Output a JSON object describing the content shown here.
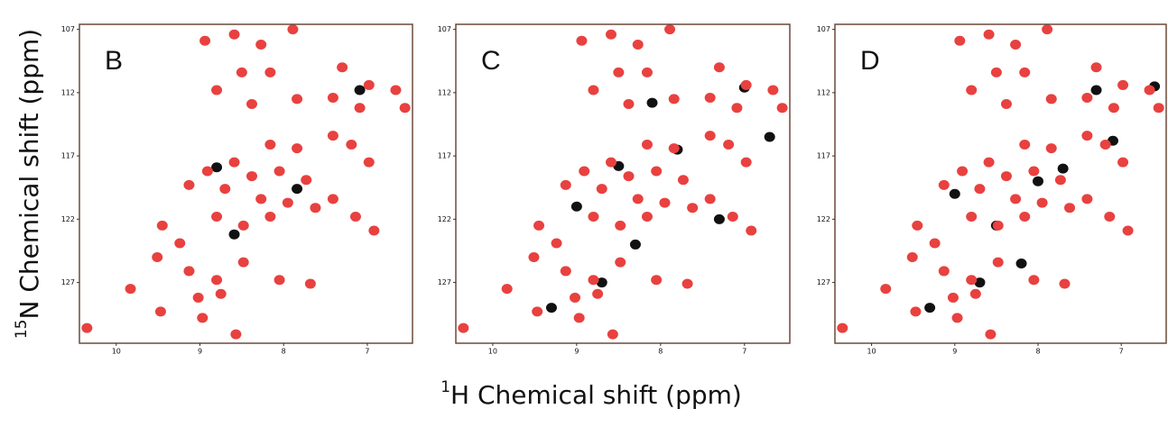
{
  "chart_data": [
    {
      "type": "scatter",
      "panel_label": "B",
      "xlim": [
        10.44,
        6.46
      ],
      "ylim": [
        131.8,
        106.6
      ],
      "xticks": [
        10,
        9,
        8,
        7
      ],
      "yticks": [
        107,
        112,
        117,
        122,
        127
      ],
      "series": [
        {
          "color": "#111111",
          "x": [
            8.8,
            7.84,
            7.09,
            8.59
          ],
          "y": [
            117.9,
            119.6,
            111.8,
            123.2
          ]
        },
        {
          "color": "#e8413f",
          "x": [
            8.94,
            8.59,
            8.27,
            7.89,
            8.5,
            8.16,
            7.3,
            6.98,
            6.66,
            7.84,
            7.41,
            7.09,
            6.55,
            8.8,
            8.38,
            8.16,
            7.84,
            7.41,
            7.19,
            8.59,
            8.38,
            8.05,
            7.73,
            8.91,
            9.13,
            8.7,
            8.27,
            7.95,
            7.62,
            8.16,
            8.48,
            8.8,
            6.98,
            7.14,
            6.92,
            7.41,
            9.45,
            9.51,
            9.24,
            9.13,
            8.8,
            8.48,
            9.02,
            8.75,
            9.83,
            9.47,
            8.97,
            8.57,
            10.35,
            8.05,
            7.68
          ],
          "y": [
            107.9,
            107.4,
            108.2,
            107,
            110.4,
            110.4,
            110,
            111.4,
            111.8,
            112.5,
            112.4,
            113.2,
            113.2,
            111.8,
            112.9,
            116.1,
            116.4,
            115.4,
            116.1,
            117.5,
            118.6,
            118.2,
            118.9,
            118.2,
            119.3,
            119.6,
            120.4,
            120.7,
            121.1,
            121.8,
            122.5,
            121.8,
            117.5,
            121.8,
            122.9,
            120.4,
            122.5,
            125,
            123.9,
            126.1,
            126.8,
            125.4,
            128.2,
            127.9,
            127.5,
            129.3,
            129.8,
            131.1,
            130.6,
            126.8,
            127.1
          ]
        }
      ]
    },
    {
      "type": "scatter",
      "panel_label": "C",
      "xlim": [
        10.44,
        6.46
      ],
      "ylim": [
        131.8,
        106.6
      ],
      "xticks": [
        10,
        9,
        8,
        7
      ],
      "yticks": [
        107,
        112,
        117,
        122,
        127
      ],
      "series": [
        {
          "color": "#111111",
          "x": [
            9.3,
            8.7,
            8.3,
            7.8,
            7.0,
            8.1,
            8.5,
            9.0,
            7.3,
            6.7
          ],
          "y": [
            129.0,
            127.0,
            124.0,
            116.5,
            111.6,
            112.8,
            117.8,
            121.0,
            122.0,
            115.5
          ]
        },
        {
          "color": "#e8413f",
          "x": [
            8.94,
            8.59,
            8.27,
            7.89,
            8.5,
            8.16,
            7.3,
            6.98,
            6.66,
            7.84,
            7.41,
            7.09,
            6.55,
            8.8,
            8.38,
            8.16,
            7.84,
            7.41,
            7.19,
            8.59,
            8.38,
            8.05,
            7.73,
            8.91,
            9.13,
            8.7,
            8.27,
            7.95,
            7.62,
            8.16,
            8.48,
            8.8,
            6.98,
            7.14,
            6.92,
            7.41,
            9.45,
            9.51,
            9.24,
            9.13,
            8.8,
            8.48,
            9.02,
            8.75,
            9.83,
            9.47,
            8.97,
            8.57,
            10.35,
            8.05,
            7.68
          ],
          "y": [
            107.9,
            107.4,
            108.2,
            107,
            110.4,
            110.4,
            110,
            111.4,
            111.8,
            112.5,
            112.4,
            113.2,
            113.2,
            111.8,
            112.9,
            116.1,
            116.4,
            115.4,
            116.1,
            117.5,
            118.6,
            118.2,
            118.9,
            118.2,
            119.3,
            119.6,
            120.4,
            120.7,
            121.1,
            121.8,
            122.5,
            121.8,
            117.5,
            121.8,
            122.9,
            120.4,
            122.5,
            125,
            123.9,
            126.1,
            126.8,
            125.4,
            128.2,
            127.9,
            127.5,
            129.3,
            129.8,
            131.1,
            130.6,
            126.8,
            127.1
          ]
        }
      ]
    },
    {
      "type": "scatter",
      "panel_label": "D",
      "xlim": [
        10.44,
        6.46
      ],
      "ylim": [
        131.8,
        106.6
      ],
      "xticks": [
        10,
        9,
        8,
        7
      ],
      "yticks": [
        107,
        112,
        117,
        122,
        127
      ],
      "series": [
        {
          "color": "#111111",
          "x": [
            6.6,
            7.3,
            8.0,
            8.5,
            9.3,
            8.7,
            7.7,
            7.1,
            8.2,
            9.0
          ],
          "y": [
            111.5,
            111.8,
            119.0,
            122.5,
            129.0,
            127.0,
            118.0,
            115.8,
            125.5,
            120.0
          ]
        },
        {
          "color": "#e8413f",
          "x": [
            8.94,
            8.59,
            8.27,
            7.89,
            8.5,
            8.16,
            7.3,
            6.98,
            6.66,
            7.84,
            7.41,
            7.09,
            6.55,
            8.8,
            8.38,
            8.16,
            7.84,
            7.41,
            7.19,
            8.59,
            8.38,
            8.05,
            7.73,
            8.91,
            9.13,
            8.7,
            8.27,
            7.95,
            7.62,
            8.16,
            8.48,
            8.8,
            6.98,
            7.14,
            6.92,
            7.41,
            9.45,
            9.51,
            9.24,
            9.13,
            8.8,
            8.48,
            9.02,
            8.75,
            9.83,
            9.47,
            8.97,
            8.57,
            10.35,
            8.05,
            7.68
          ],
          "y": [
            107.9,
            107.4,
            108.2,
            107,
            110.4,
            110.4,
            110,
            111.4,
            111.8,
            112.5,
            112.4,
            113.2,
            113.2,
            111.8,
            112.9,
            116.1,
            116.4,
            115.4,
            116.1,
            117.5,
            118.6,
            118.2,
            118.9,
            118.2,
            119.3,
            119.6,
            120.4,
            120.7,
            121.1,
            121.8,
            122.5,
            121.8,
            117.5,
            121.8,
            122.9,
            120.4,
            122.5,
            125,
            123.9,
            126.1,
            126.8,
            125.4,
            128.2,
            127.9,
            127.5,
            129.3,
            129.8,
            131.1,
            130.6,
            126.8,
            127.1
          ]
        }
      ]
    }
  ],
  "y_label": {
    "sup": "15",
    "text": "N Chemical shift (ppm)"
  },
  "x_label": {
    "sup": "1",
    "text": "H Chemical shift (ppm)"
  }
}
